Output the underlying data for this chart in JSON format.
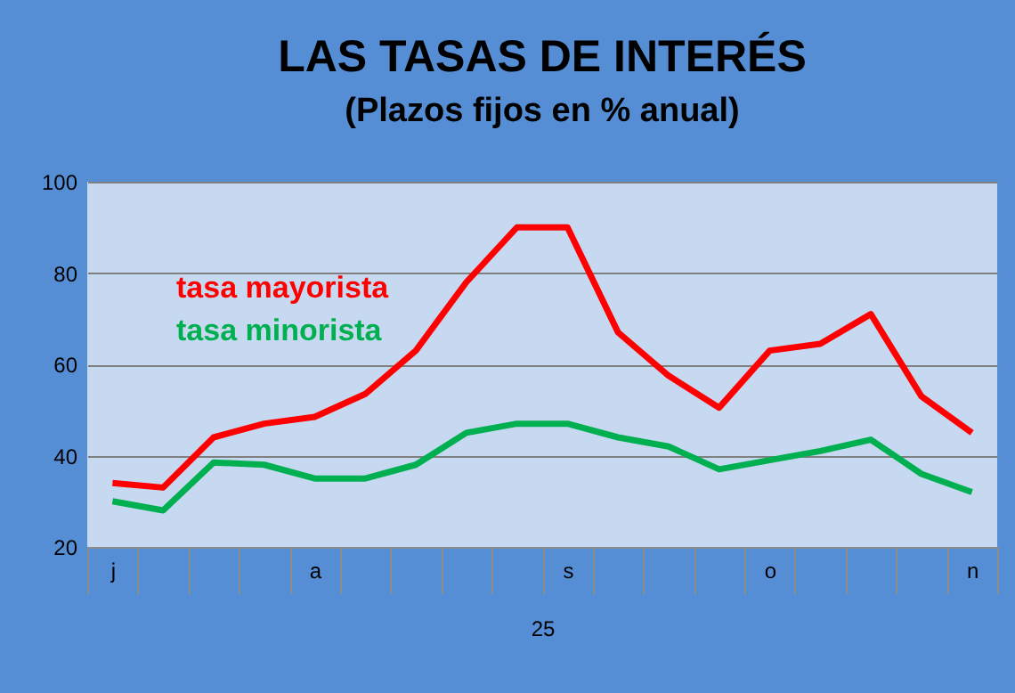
{
  "chart_data": {
    "type": "line",
    "title": "LAS TASAS DE INTERÉS",
    "subtitle": "(Plazos fijos en % anual)",
    "xlabel": "25",
    "categories": [
      "j",
      null,
      null,
      null,
      "a",
      null,
      null,
      null,
      null,
      "s",
      null,
      null,
      null,
      "o",
      null,
      null,
      null,
      "n"
    ],
    "series": [
      {
        "name": "tasa mayorista",
        "color": "#ff0000",
        "values": [
          34,
          33,
          44,
          47,
          48.5,
          53.5,
          63,
          78,
          90,
          90,
          67,
          57.5,
          50.5,
          63,
          64.5,
          71,
          53,
          45
        ]
      },
      {
        "name": "tasa minorista",
        "color": "#00b050",
        "values": [
          30,
          28,
          38.5,
          38,
          35,
          35,
          38,
          45,
          47,
          47,
          44,
          42,
          37,
          39,
          41,
          43.5,
          36,
          32
        ]
      }
    ],
    "ylim": [
      20,
      100
    ],
    "yticks": [
      20,
      40,
      60,
      80,
      100
    ],
    "grid": "y",
    "legend": "top left",
    "marker": "none",
    "line_style": "solid"
  }
}
